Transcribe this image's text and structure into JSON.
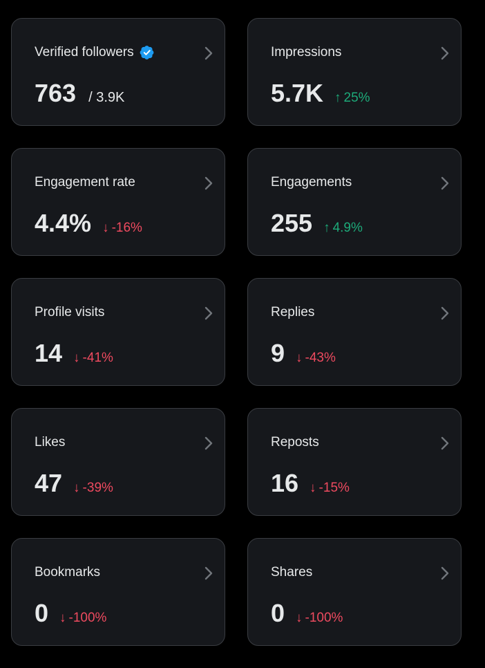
{
  "cards": [
    {
      "title": "Verified followers",
      "value": "763",
      "total": "/ 3.9K",
      "verified": true
    },
    {
      "title": "Impressions",
      "value": "5.7K",
      "change": "25%",
      "direction": "up"
    },
    {
      "title": "Engagement rate",
      "value": "4.4%",
      "change": "-16%",
      "direction": "down"
    },
    {
      "title": "Engagements",
      "value": "255",
      "change": "4.9%",
      "direction": "up"
    },
    {
      "title": "Profile visits",
      "value": "14",
      "change": "-41%",
      "direction": "down"
    },
    {
      "title": "Replies",
      "value": "9",
      "change": "-43%",
      "direction": "down"
    },
    {
      "title": "Likes",
      "value": "47",
      "change": "-39%",
      "direction": "down"
    },
    {
      "title": "Reposts",
      "value": "16",
      "change": "-15%",
      "direction": "down"
    },
    {
      "title": "Bookmarks",
      "value": "0",
      "change": "-100%",
      "direction": "down"
    },
    {
      "title": "Shares",
      "value": "0",
      "change": "-100%",
      "direction": "down"
    }
  ],
  "colors": {
    "background": "#000000",
    "card": "#16181c",
    "card_border": "#3a3d42",
    "text": "#e7e9ea",
    "up": "#1dab7a",
    "down": "#ee4a5f",
    "verified": "#1d9bf0"
  },
  "icons": {
    "up": "arrow-up-icon",
    "down": "arrow-down-icon",
    "chevron": "chevron-right-icon",
    "verified": "verified-badge-icon"
  }
}
